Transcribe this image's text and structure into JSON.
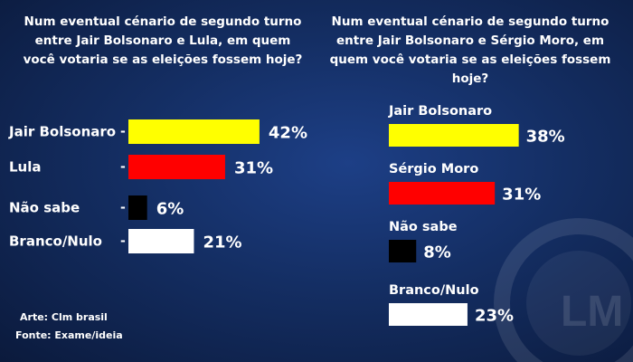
{
  "colors": {
    "yellow": "#ffff00",
    "red": "#ff0000",
    "black": "#000000",
    "white": "#ffffff"
  },
  "watermark_icon": "lm-logo-icon",
  "chart_data": [
    {
      "type": "bar",
      "title": "Num eventual cénario de segundo turno entre Jair Bolsonaro e Lula, em quem você votaria se as eleições fossem hoje?",
      "categories": [
        "Jair Bolsonaro",
        "Lula",
        "Não sabe",
        "Branco/Nulo"
      ],
      "values": [
        42,
        31,
        6,
        21
      ],
      "value_labels": [
        "42%",
        "31%",
        "6%",
        "21%"
      ],
      "bar_colors": [
        "#ffff00",
        "#ff0000",
        "#000000",
        "#ffffff"
      ],
      "label_suffix": "-",
      "orientation": "horizontal"
    },
    {
      "type": "bar",
      "title": "Num eventual cénario de segundo turno entre Jair Bolsonaro e Sérgio Moro, em quem você votaria se as eleições fossem hoje?",
      "categories": [
        "Jair Bolsonaro",
        "Sérgio Moro",
        "Não sabe",
        "Branco/Nulo"
      ],
      "values": [
        38,
        31,
        8,
        23
      ],
      "value_labels": [
        "38%",
        "31%",
        "8%",
        "23%"
      ],
      "bar_colors": [
        "#ffff00",
        "#ff0000",
        "#000000",
        "#ffffff"
      ],
      "orientation": "horizontal"
    }
  ],
  "footer": {
    "credit": "Arte: Clm brasil",
    "source": "Fonte: Exame/ideia"
  }
}
